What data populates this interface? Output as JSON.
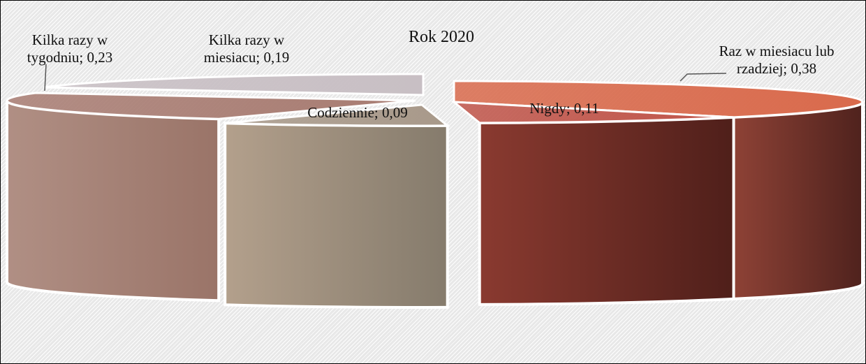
{
  "chart_data": {
    "type": "pie",
    "title": "Rok 2020",
    "categories": [
      "Raz w miesiacu lub rzadziej",
      "Nigdy",
      "Codziennie",
      "Kilka razy w tygodniu",
      "Kilka razy w miesiacu"
    ],
    "values": [
      0.38,
      0.11,
      0.09,
      0.23,
      0.19
    ],
    "labels": [
      [
        "Raz w miesiacu lub",
        "rzadziej; 0,38"
      ],
      [
        "Nigdy; 0,11"
      ],
      [
        "Codziennie; 0,09"
      ],
      [
        "Kilka razy w",
        "tygodniu; 0,23"
      ],
      [
        "Kilka razy w",
        "miesiacu; 0,19"
      ]
    ],
    "colors": [
      "#d96a4c",
      "#c0554a",
      "#a8998a",
      "#a87c72",
      "#c8bfc4"
    ],
    "side_colors": [
      [
        "#8e4236",
        "#4f221d"
      ],
      [
        "#8a3a30",
        "#4f1f1a"
      ],
      [
        "#b3a08c",
        "#857b6c"
      ],
      [
        "#b08f84",
        "#9a7468"
      ],
      [
        "#b7aeb2",
        "#978e92"
      ]
    ],
    "style": "3d-exploded"
  }
}
